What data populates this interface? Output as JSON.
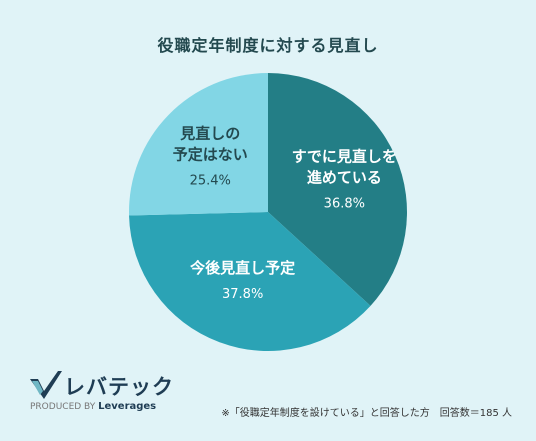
{
  "chart_data": {
    "type": "pie",
    "title": "役職定年制度に対する見直し",
    "slices": [
      {
        "label_lines": [
          "すでに見直しを",
          "進めている"
        ],
        "value": 36.8,
        "value_label": "36.8%",
        "color": "#237e86"
      },
      {
        "label_lines": [
          "今後見直し予定"
        ],
        "value": 37.8,
        "value_label": "37.8%",
        "color": "#2ba3b5"
      },
      {
        "label_lines": [
          "見直しの",
          "予定はない"
        ],
        "value": 25.4,
        "value_label": "25.4%",
        "color": "#82d6e5"
      }
    ],
    "start_angle_deg": 0,
    "direction": "clockwise"
  },
  "logo": {
    "name": "レバテック",
    "produced_by": "PRODUCED BY",
    "brand": "Leverages",
    "mark_icon": "check-mark-icon"
  },
  "footnote": "※「役職定年制度を設けている」と回答した方　回答数＝185 人"
}
